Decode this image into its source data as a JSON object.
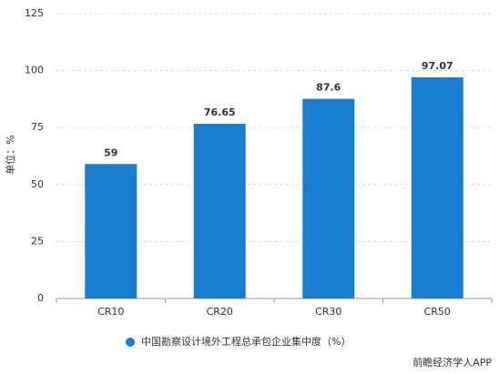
{
  "chart_data": {
    "type": "bar",
    "ylabel": "单位：%",
    "categories": [
      "CR10",
      "CR20",
      "CR30",
      "CR50"
    ],
    "series": [
      {
        "name": "中国勘察设计境外工程总承包企业集中度（%）",
        "color": "#1a7ed0",
        "values": [
          59,
          76.65,
          87.6,
          97.07
        ]
      }
    ],
    "ylim": [
      0,
      125
    ],
    "yticks": [
      0,
      25,
      50,
      75,
      100,
      125
    ],
    "grid": true,
    "legend": "bottom",
    "source": "前瞻经济学人APP"
  }
}
